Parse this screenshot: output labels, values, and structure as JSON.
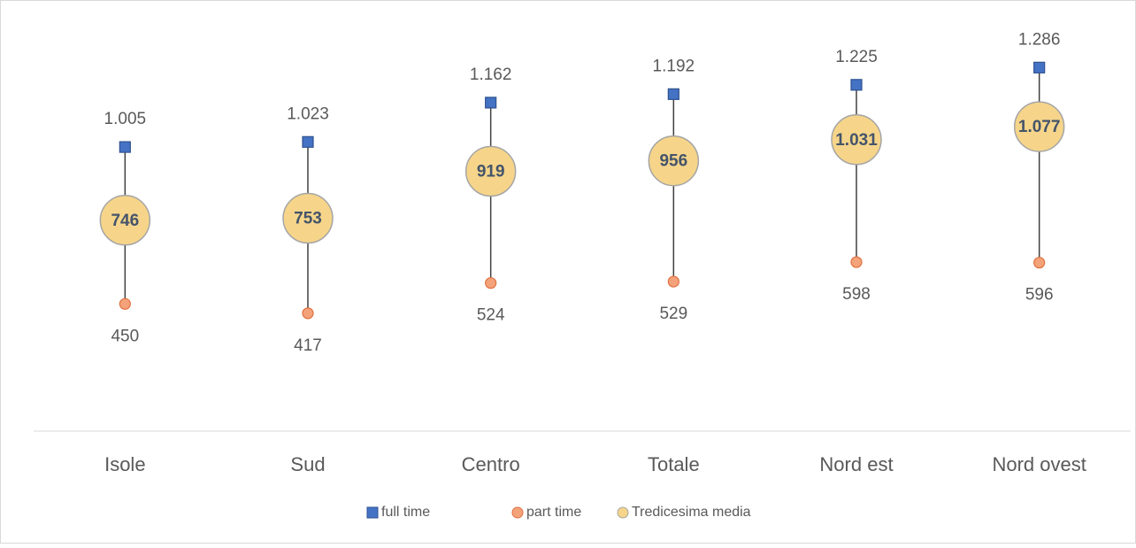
{
  "chart_data": {
    "type": "range",
    "categories": [
      "Isole",
      "Sud",
      "Centro",
      "Totale",
      "Nord est",
      "Nord ovest"
    ],
    "series": [
      {
        "name": "full time",
        "color": "#4472c4",
        "values": [
          1005,
          1023,
          1162,
          1192,
          1225,
          1286
        ],
        "value_labels": [
          "1.005",
          "1.023",
          "1.162",
          "1.192",
          "1.225",
          "1.286"
        ]
      },
      {
        "name": "part time",
        "color": "#f4a27a",
        "values": [
          450,
          417,
          524,
          529,
          598,
          596
        ]
      },
      {
        "name": "Tredicesima media",
        "color": "#f6d58a",
        "values": [
          746,
          753,
          919,
          956,
          1031,
          1077
        ],
        "value_labels": [
          "746",
          "753",
          "919",
          "956",
          "1.031",
          "1.077"
        ]
      }
    ],
    "ylim": [
      0,
      1500
    ],
    "legend": "bottom"
  }
}
